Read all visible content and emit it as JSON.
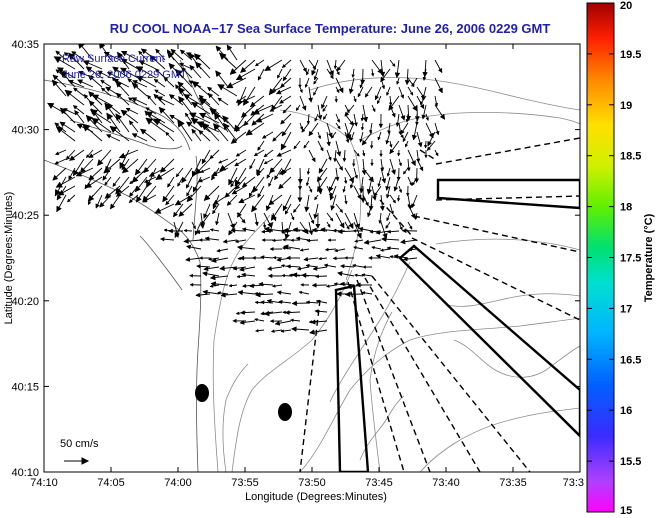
{
  "title": "RU COOL   NOAA−17  Sea Surface Temperature:  June 26, 2006 0229 GMT",
  "annotation": {
    "line1": "Raw Surface Current",
    "line2": "June 26, 2006 0229 GMT"
  },
  "axes": {
    "xlabel": "Longitude (Degrees:Minutes)",
    "ylabel": "Latitude (Degrees:Minutes)",
    "x_ticks": [
      "74:10",
      "74:05",
      "74:00",
      "73:55",
      "73:50",
      "73:45",
      "73:40",
      "73:35",
      "73:3"
    ],
    "y_ticks": [
      "40:35",
      "40:30",
      "40:25",
      "40:20",
      "40:15",
      "40:10"
    ]
  },
  "scale": {
    "label": "50 cm/s"
  },
  "colorbar": {
    "label": "Temperature (°C)",
    "ticks": [
      "20",
      "19.5",
      "19",
      "18.5",
      "18",
      "17.5",
      "17",
      "16.5",
      "16",
      "15.5",
      "15"
    ],
    "min": 15,
    "max": 20
  },
  "colors": {
    "title": "#1f1fb0",
    "land": "#ffffff",
    "vector": "#000000",
    "contour": "#8c8c8c"
  }
}
